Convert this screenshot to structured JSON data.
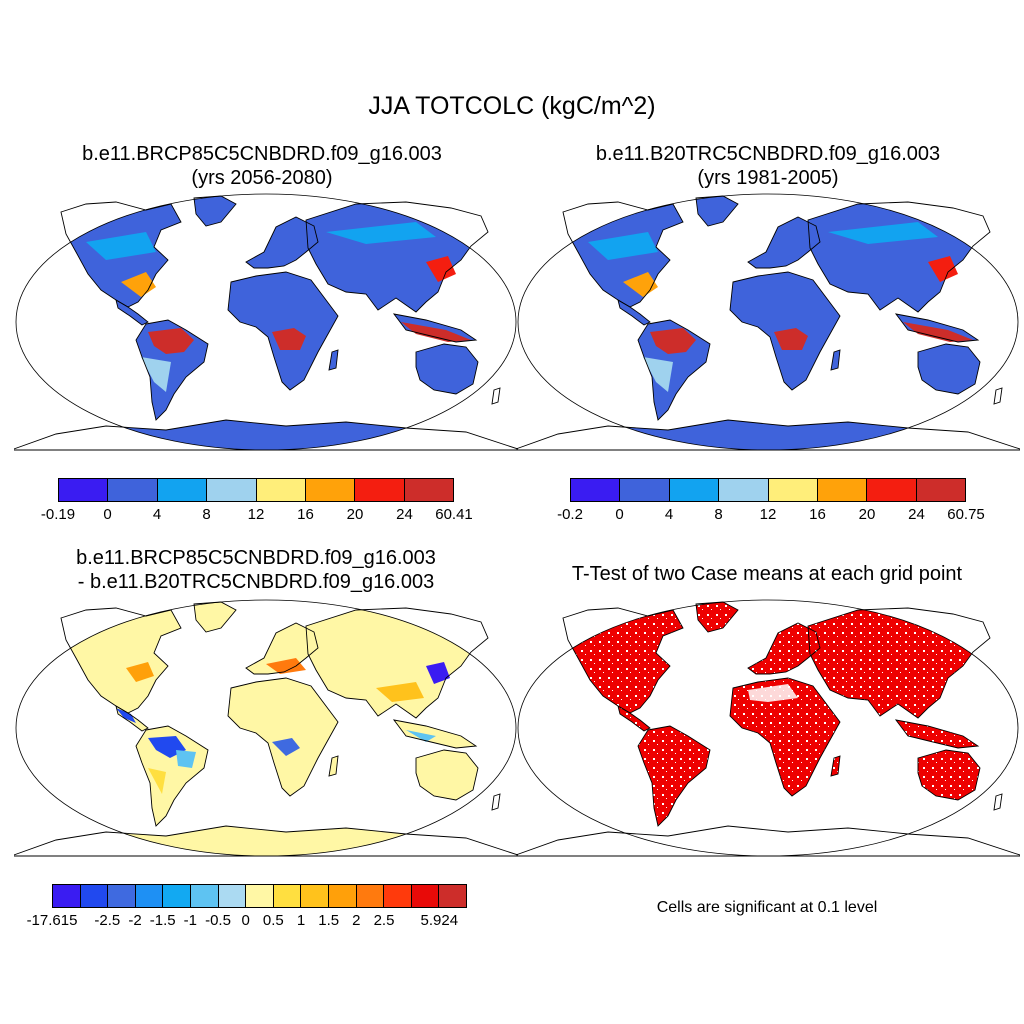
{
  "title": "JJA TOTCOLC (kgC/m^2)",
  "panels": {
    "future": {
      "title_line1": "b.e11.BRCP85C5CNBDRD.f09_g16.003",
      "title_line2": "(yrs 2056-2080)",
      "colorbar_labels": [
        "-0.19",
        "0",
        "4",
        "8",
        "12",
        "16",
        "20",
        "24",
        "60.41"
      ]
    },
    "historical": {
      "title_line1": "b.e11.B20TRC5CNBDRD.f09_g16.003",
      "title_line2": "(yrs 1981-2005)",
      "colorbar_labels": [
        "-0.2",
        "0",
        "4",
        "8",
        "12",
        "16",
        "20",
        "24",
        "60.75"
      ]
    },
    "difference": {
      "title_line1": "b.e11.BRCP85C5CNBDRD.f09_g16.003",
      "title_line2": "- b.e11.B20TRC5CNBDRD.f09_g16.003",
      "colorbar_labels": [
        "-17.615",
        "-2.5",
        "-2",
        "-1.5",
        "-1",
        "-0.5",
        "0",
        "0.5",
        "1",
        "1.5",
        "2",
        "2.5",
        "5.924"
      ]
    },
    "ttest": {
      "title_line1": "T-Test of two Case means at each grid point",
      "note": "Cells are significant at 0.1 level"
    }
  },
  "colors": {
    "abs_palette": [
      "#3a1cf2",
      "#3f63db",
      "#12a3f0",
      "#9fd2ee",
      "#ffee7a",
      "#ffa20a",
      "#f41e10",
      "#cd2d2a"
    ],
    "diff_palette": [
      "#3a1cf2",
      "#2149ef",
      "#3f6ae0",
      "#1e90f4",
      "#12a9f2",
      "#5ec3f2",
      "#abdaf2",
      "#fff7a5",
      "#ffdf40",
      "#ffc21c",
      "#ffa00a",
      "#ff7a0e",
      "#ff3a0c",
      "#e80a08",
      "#cd2d2a"
    ],
    "significant": "#ee0000"
  }
}
